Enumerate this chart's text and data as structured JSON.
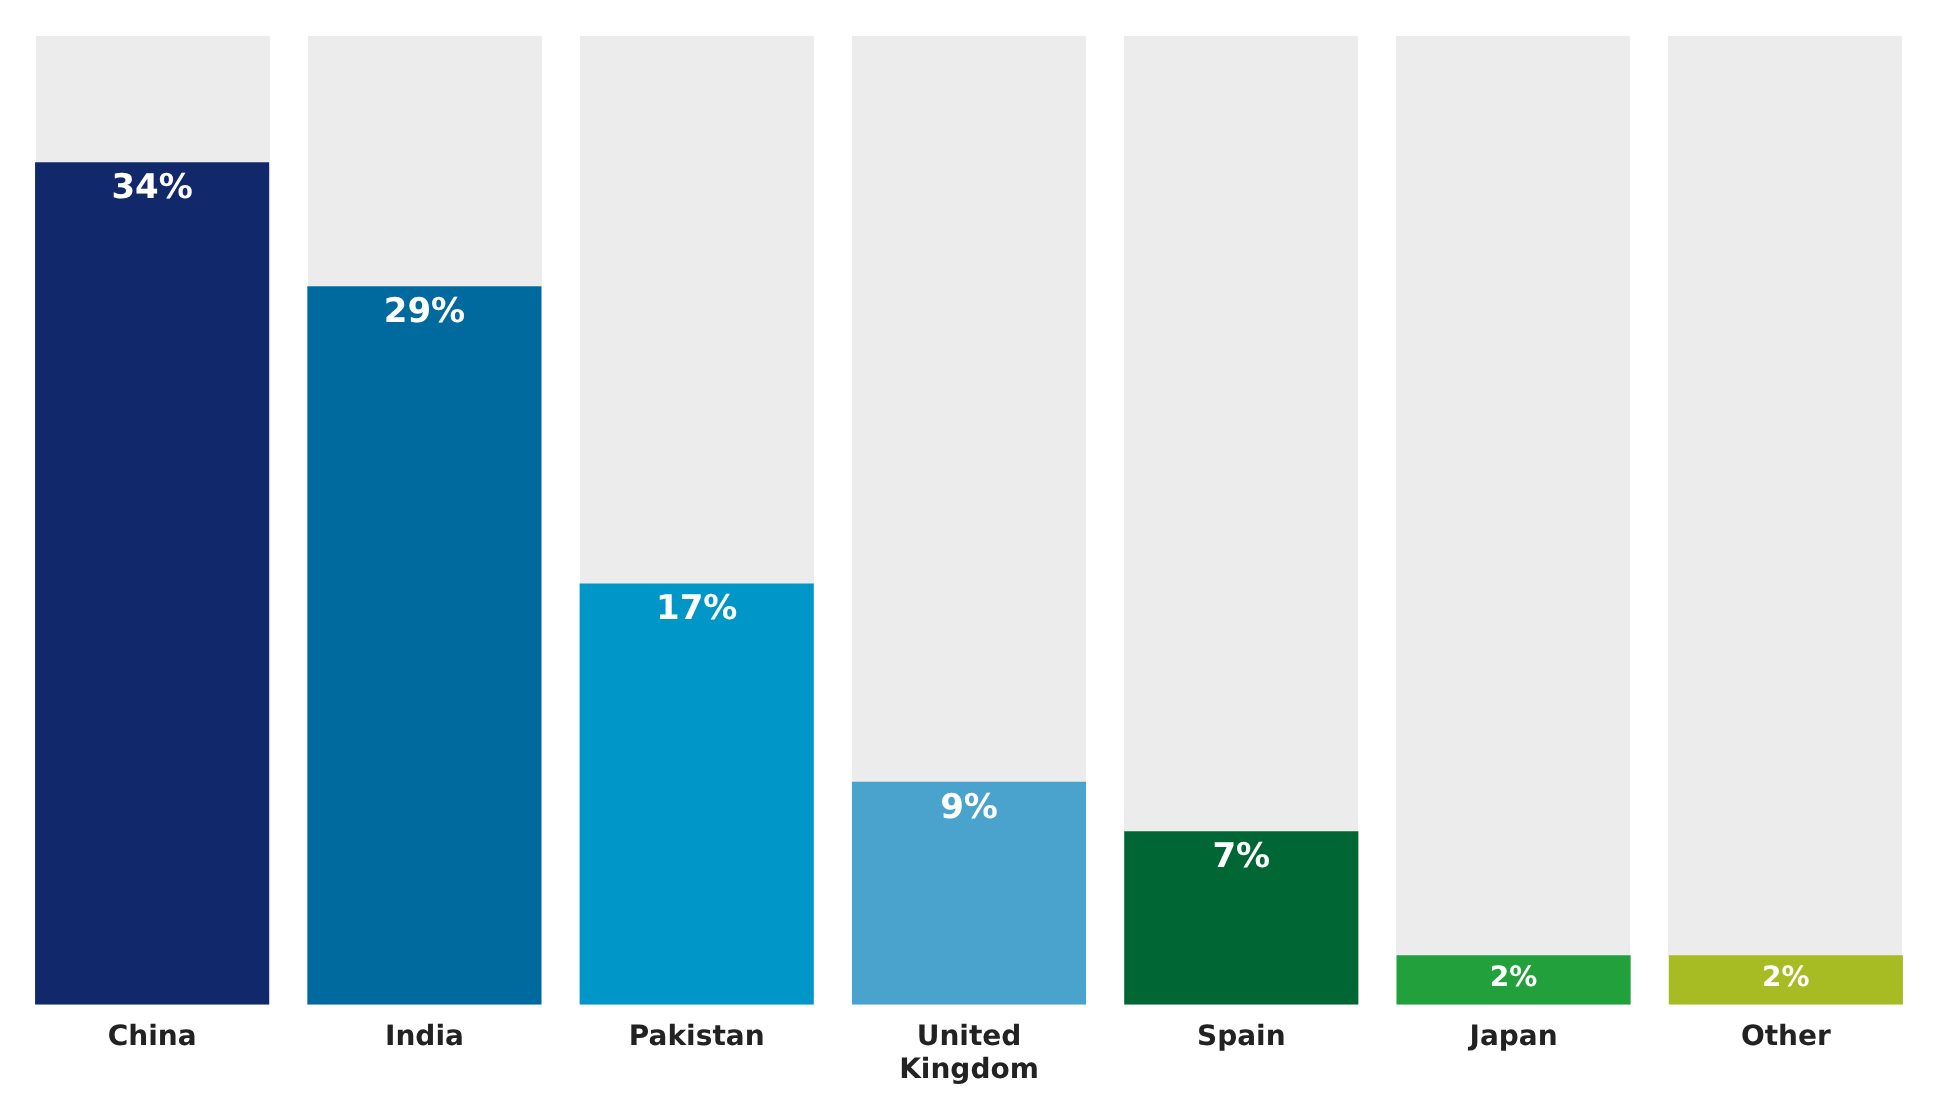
{
  "chart_data": {
    "type": "bar",
    "categories": [
      "China",
      "India",
      "Pakistan",
      "United Kingdom",
      "Spain",
      "Japan",
      "Other"
    ],
    "values": [
      34,
      29,
      17,
      9,
      7,
      2,
      2
    ],
    "colors": [
      "#11296b",
      "#006a9e",
      "#0096c8",
      "#4aa3cc",
      "#006633",
      "#22a03c",
      "#a6bc22"
    ],
    "value_labels": [
      "34%",
      "29%",
      "17%",
      "9%",
      "7%",
      "2%",
      "2%"
    ],
    "grid": false,
    "legend": false
  }
}
